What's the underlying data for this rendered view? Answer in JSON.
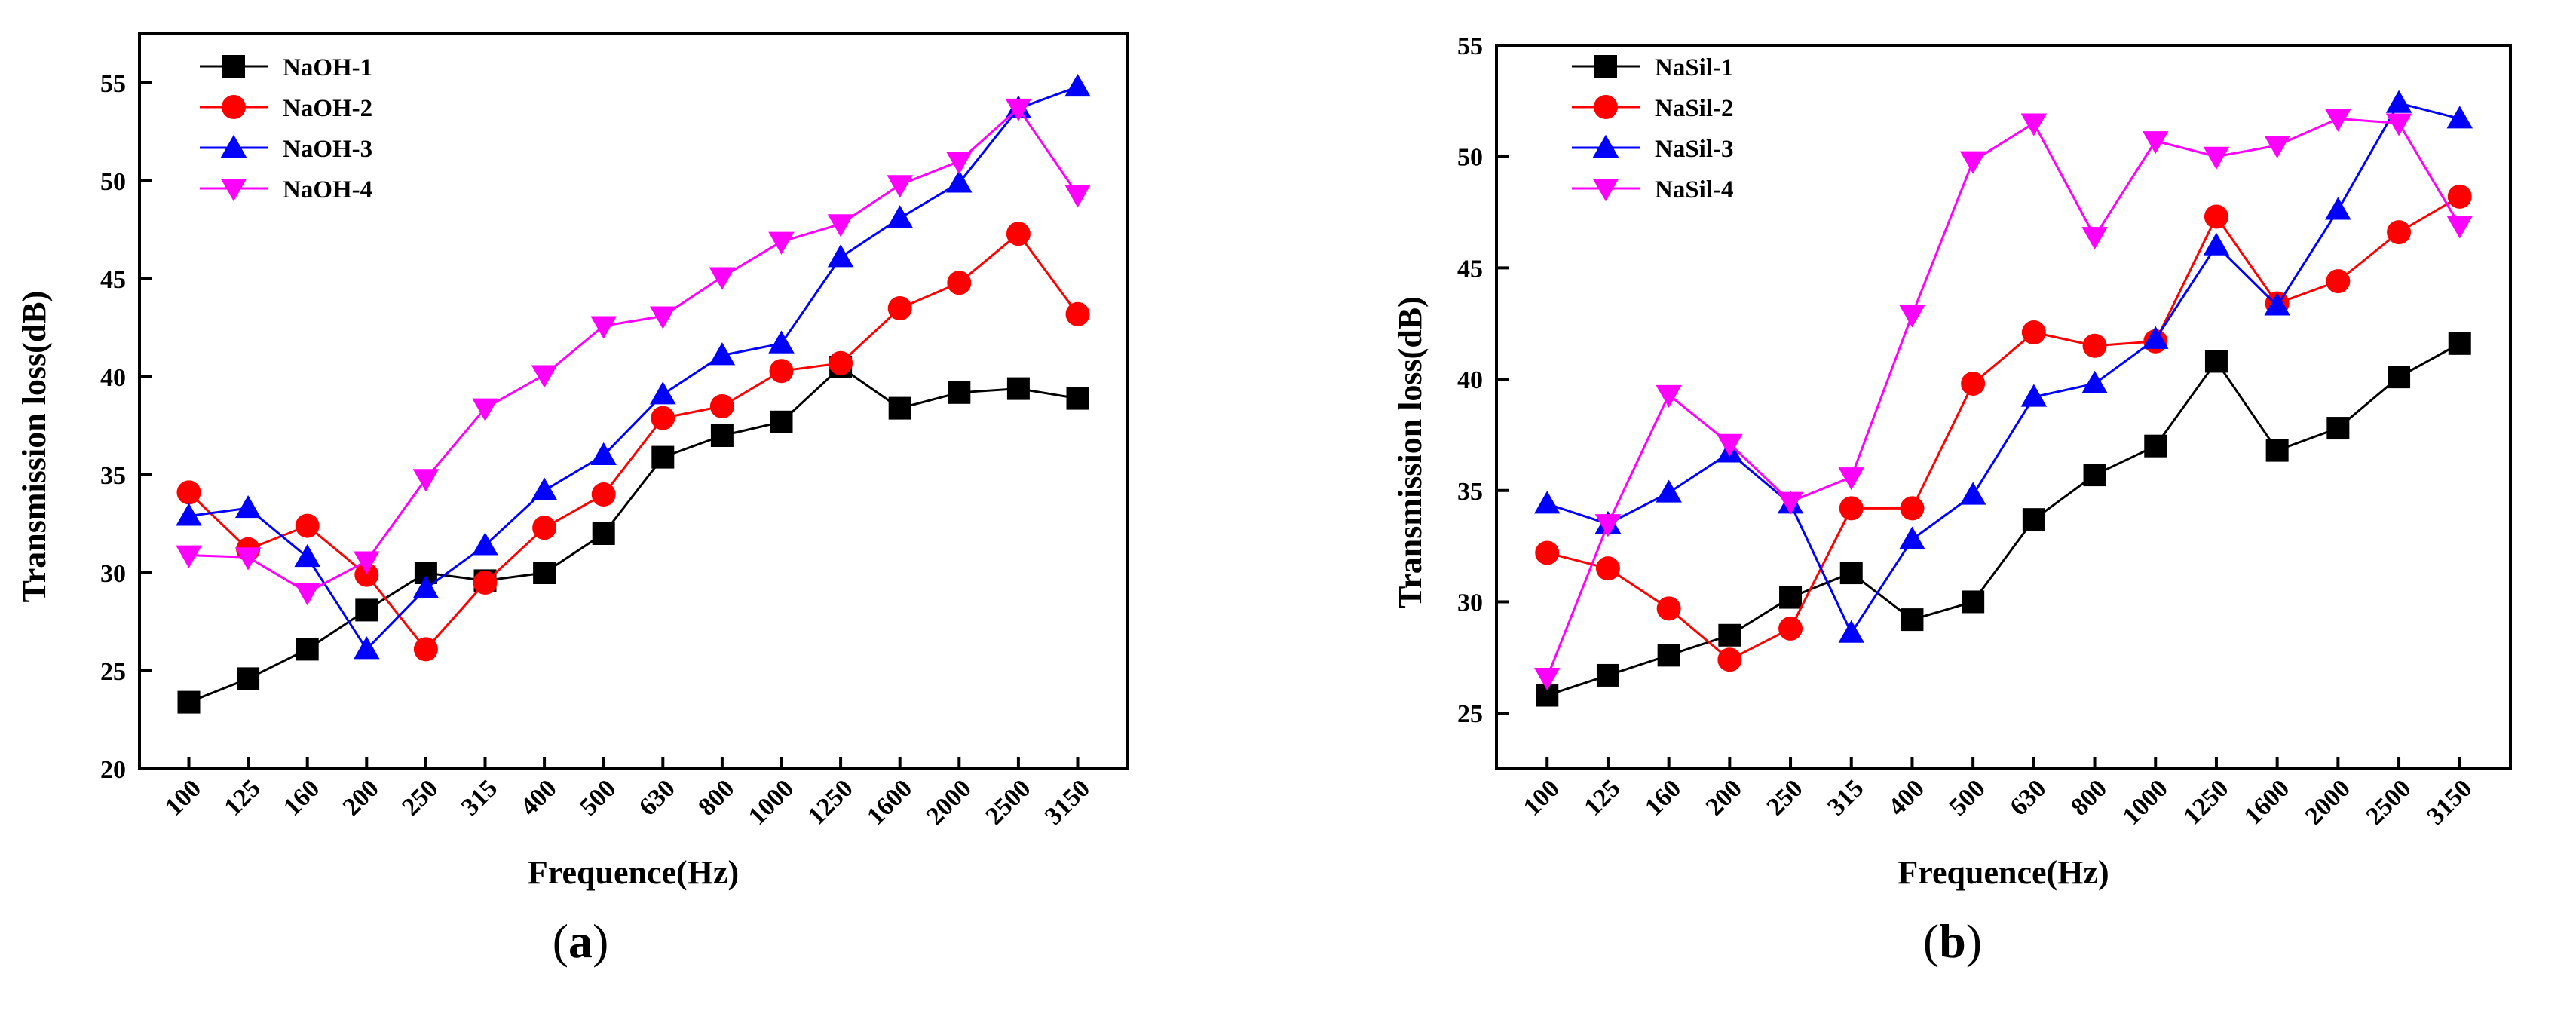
{
  "chart_data": [
    {
      "type": "line",
      "panel_label_open": "(",
      "panel_label_letter": "a",
      "panel_label_close": ")",
      "xlabel": "Frequence(Hz)",
      "ylabel": "Transmission loss(dB)",
      "categories": [
        "100",
        "125",
        "160",
        "200",
        "250",
        "315",
        "400",
        "500",
        "630",
        "800",
        "1000",
        "1250",
        "1600",
        "2000",
        "2500",
        "3150"
      ],
      "ylim": [
        20,
        57.5
      ],
      "yticks": [
        20,
        25,
        30,
        35,
        40,
        45,
        50,
        55
      ],
      "legend_position": "top-left",
      "series": [
        {
          "name": "NaOH-1",
          "color": "#000000",
          "marker": "square",
          "values": [
            23.4,
            24.6,
            26.1,
            28.1,
            30.0,
            29.6,
            30.0,
            32.0,
            35.9,
            37.0,
            37.7,
            40.5,
            38.4,
            39.2,
            39.4,
            38.9
          ]
        },
        {
          "name": "NaOH-2",
          "color": "#ff0000",
          "marker": "circle",
          "values": [
            34.1,
            31.2,
            32.4,
            29.9,
            26.1,
            29.5,
            32.3,
            34.0,
            37.9,
            38.5,
            40.3,
            40.7,
            43.5,
            44.8,
            47.3,
            43.2
          ]
        },
        {
          "name": "NaOH-3",
          "color": "#0000ff",
          "marker": "triangle-up",
          "values": [
            32.9,
            33.3,
            30.8,
            26.1,
            29.2,
            31.4,
            34.2,
            36.0,
            39.1,
            41.1,
            41.7,
            46.1,
            48.1,
            49.9,
            53.7,
            54.8
          ]
        },
        {
          "name": "NaOH-4",
          "color": "#ff00ff",
          "marker": "triangle-down",
          "values": [
            30.9,
            30.8,
            29.0,
            30.6,
            34.8,
            38.4,
            40.1,
            42.6,
            43.1,
            45.1,
            46.9,
            47.8,
            49.8,
            51.0,
            53.7,
            49.3
          ]
        }
      ]
    },
    {
      "type": "line",
      "panel_label_open": "(",
      "panel_label_letter": "b",
      "panel_label_close": ")",
      "xlabel": "Frequence(Hz)",
      "ylabel": "Transmission loss(dB)",
      "categories": [
        "100",
        "125",
        "160",
        "200",
        "250",
        "315",
        "400",
        "500",
        "630",
        "800",
        "1000",
        "1250",
        "1600",
        "2000",
        "2500",
        "3150"
      ],
      "ylim": [
        22.5,
        55
      ],
      "yticks": [
        25,
        30,
        35,
        40,
        45,
        50,
        55
      ],
      "legend_position": "top-left",
      "series": [
        {
          "name": "NaSil-1",
          "color": "#000000",
          "marker": "square",
          "values": [
            25.8,
            26.7,
            27.6,
            28.5,
            30.2,
            31.3,
            29.2,
            30.0,
            33.7,
            35.7,
            37.0,
            40.8,
            36.8,
            37.8,
            40.1,
            41.6
          ]
        },
        {
          "name": "NaSil-2",
          "color": "#ff0000",
          "marker": "circle",
          "values": [
            32.2,
            31.5,
            29.7,
            27.4,
            28.8,
            34.2,
            34.2,
            39.8,
            42.1,
            41.5,
            41.7,
            47.3,
            43.4,
            44.4,
            46.6,
            48.2
          ]
        },
        {
          "name": "NaSil-3",
          "color": "#0000ff",
          "marker": "triangle-up",
          "values": [
            34.4,
            33.5,
            34.9,
            36.7,
            34.4,
            28.6,
            32.8,
            34.8,
            39.2,
            39.8,
            41.8,
            46.0,
            43.3,
            47.6,
            52.4,
            51.7
          ]
        },
        {
          "name": "NaSil-4",
          "color": "#ff00ff",
          "marker": "triangle-down",
          "values": [
            26.6,
            33.5,
            39.3,
            37.1,
            34.5,
            35.6,
            42.9,
            49.8,
            51.5,
            46.4,
            50.7,
            50.0,
            50.5,
            51.7,
            51.5,
            46.9
          ]
        }
      ]
    }
  ]
}
